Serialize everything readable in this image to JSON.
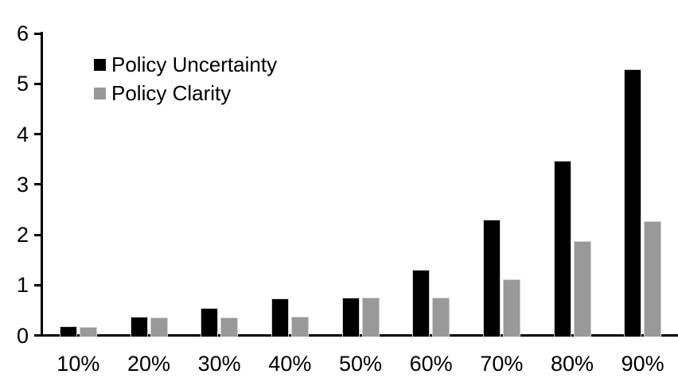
{
  "chart_data": {
    "type": "bar",
    "title": "",
    "xlabel": "",
    "ylabel": "",
    "categories": [
      "10%",
      "20%",
      "30%",
      "40%",
      "50%",
      "60%",
      "70%",
      "80%",
      "90%"
    ],
    "series": [
      {
        "name": "Policy Uncertainty",
        "color": "#000000",
        "values": [
          0.2,
          0.39,
          0.57,
          0.76,
          0.78,
          1.33,
          2.32,
          3.49,
          5.32
        ]
      },
      {
        "name": "Policy Clarity",
        "color": "#999999",
        "values": [
          0.19,
          0.38,
          0.38,
          0.39,
          0.77,
          0.77,
          1.14,
          1.89,
          2.29
        ]
      }
    ],
    "ylim": [
      0,
      6
    ],
    "yticks": [
      0,
      1,
      2,
      3,
      4,
      5,
      6
    ],
    "grid": false,
    "legend_position": "top-left"
  }
}
